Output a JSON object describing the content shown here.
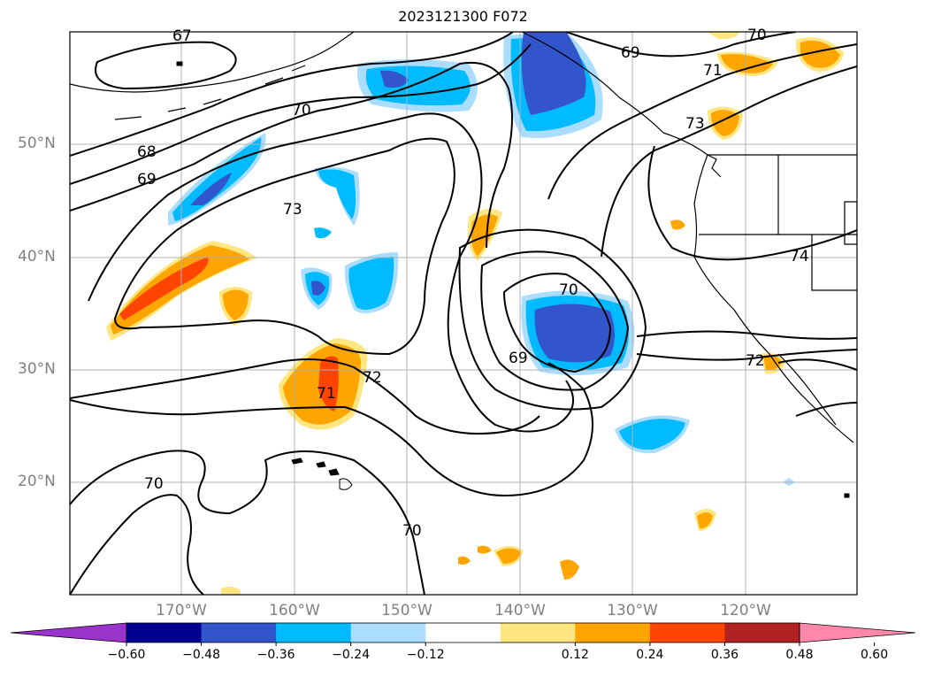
{
  "title": "2023121300 F072",
  "latitude_labels": [
    "50°N",
    "40°N",
    "30°N",
    "20°N"
  ],
  "longitude_labels": [
    "170°W",
    "160°W",
    "150°W",
    "140°W",
    "130°W",
    "120°W"
  ],
  "contour_labels": [
    "67",
    "68",
    "69",
    "70",
    "73",
    "73",
    "69",
    "71",
    "70",
    "69",
    "72",
    "71",
    "70",
    "70",
    "72",
    "74",
    "70"
  ],
  "colorbar": {
    "tick_labels": [
      "−0.60",
      "−0.48",
      "−0.36",
      "−0.24",
      "−0.12",
      "0.12",
      "0.24",
      "0.36",
      "0.48",
      "0.60"
    ],
    "colors": [
      "#9933cc",
      "#000090",
      "#3355cc",
      "#00bbff",
      "#aaddff",
      "#ffffff",
      "#ffe680",
      "#ffa500",
      "#ff4400",
      "#b22222",
      "#ff88aa"
    ]
  },
  "colors": {
    "neg_strong": "#3355cc",
    "neg_mid": "#00bbff",
    "neg_weak": "#aaddff",
    "pos_weak": "#ffe680",
    "pos_mid": "#ffa500",
    "pos_strong": "#ff4400",
    "grid": "#b0b0b0",
    "contour": "#000000"
  }
}
